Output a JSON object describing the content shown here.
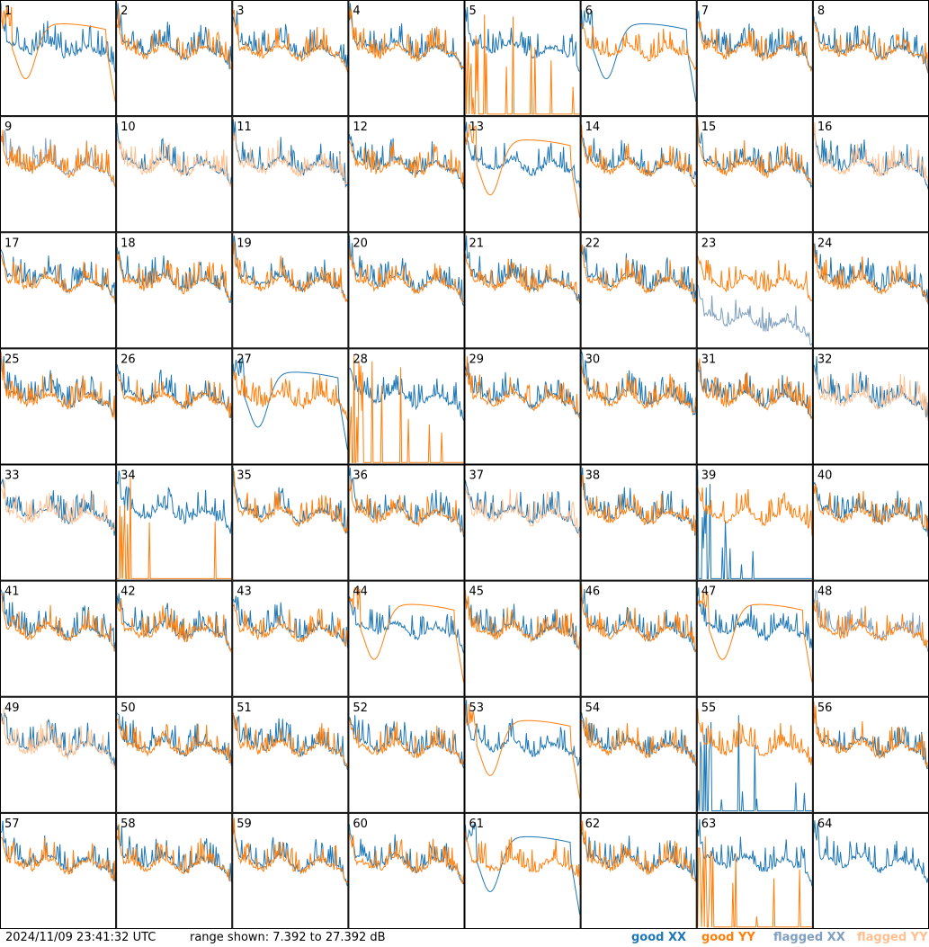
{
  "chart_data": {
    "type": "line",
    "title": "",
    "grid_rows": 8,
    "grid_cols": 8,
    "tile_labels": [
      "1",
      "2",
      "3",
      "4",
      "5",
      "6",
      "7",
      "8",
      "9",
      "10",
      "11",
      "12",
      "13",
      "14",
      "15",
      "16",
      "17",
      "18",
      "19",
      "20",
      "21",
      "22",
      "23",
      "24",
      "25",
      "26",
      "27",
      "28",
      "29",
      "30",
      "31",
      "32",
      "33",
      "34",
      "35",
      "36",
      "37",
      "38",
      "39",
      "40",
      "41",
      "42",
      "43",
      "44",
      "45",
      "46",
      "47",
      "48",
      "49",
      "50",
      "51",
      "52",
      "53",
      "54",
      "55",
      "56",
      "57",
      "58",
      "59",
      "60",
      "61",
      "62",
      "63",
      "64"
    ],
    "y_range_db": [
      7.392,
      27.392
    ],
    "series_legend": [
      {
        "name": "good XX",
        "color": "#1f77b4"
      },
      {
        "name": "good YY",
        "color": "#ff7f0e"
      },
      {
        "name": "flagged XX",
        "color": "#7f9fbf"
      },
      {
        "name": "flagged YY",
        "color": "#ffbf8f"
      }
    ],
    "special_tiles": {
      "flagged_xx": [
        9,
        23,
        48
      ],
      "flagged_yy": [
        10,
        11,
        16,
        32,
        33,
        37,
        49
      ],
      "spiky_dead_xx": [
        39,
        55
      ],
      "spiky_dead_yy": [
        5,
        28,
        34,
        63
      ],
      "smooth_dip_yy": [
        1,
        13,
        44,
        47,
        53
      ],
      "smooth_dip_xx": [
        6,
        27,
        61
      ],
      "single_xx_only": [
        64
      ]
    }
  },
  "footer": {
    "timestamp": "2024/11/09 23:41:32 UTC",
    "range": "range shown: 7.392 to 27.392 dB",
    "legend": [
      "good XX",
      "good YY",
      "flagged XX",
      "flagged YY"
    ]
  }
}
